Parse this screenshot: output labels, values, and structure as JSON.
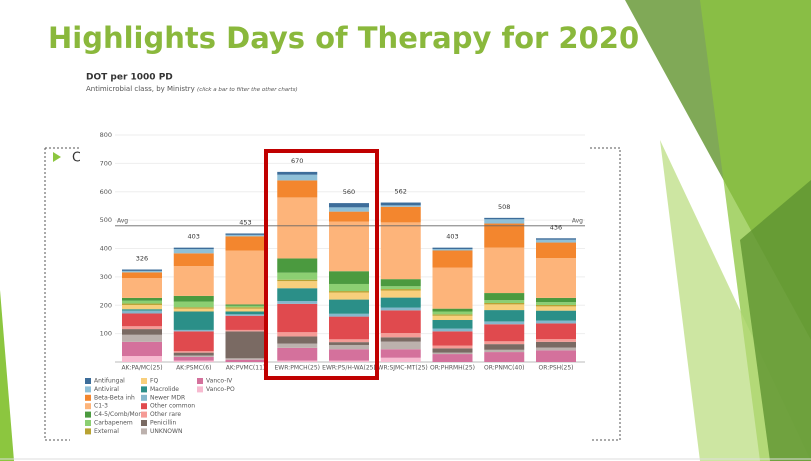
{
  "slide_title": "Highlights Days of Therapy for 2020",
  "bullet_text": "C",
  "chart_data": {
    "type": "stacked_bar",
    "title": "DOT per 1000 PD",
    "subtitle": "Antimicrobial class, by Ministry",
    "subtitle_note": "(click a bar to filter the other charts)",
    "categories": [
      "AK:PA/MC(25)",
      "AK:PSMC(6)",
      "AK:PVMC(11)",
      "EWR:PMCH(25)",
      "EWR:PS/H-WA(25)",
      "EWR:SJMC-MT(25)",
      "OR:PHRMH(25)",
      "OR:PNMC(40)",
      "OR:PSH(25)"
    ],
    "totals": [
      326,
      403,
      453,
      670,
      560,
      562,
      403,
      508,
      436
    ],
    "avg_line": 480,
    "avg_label": "Avg",
    "ylim": [
      0,
      800
    ],
    "yticks": [
      100,
      200,
      300,
      400,
      500,
      600,
      700,
      800
    ],
    "grid": true,
    "series": [
      {
        "name": "Antifungal",
        "color": "#3d6d9a",
        "values": [
          5,
          5,
          5,
          10,
          15,
          10,
          5,
          5,
          5
        ]
      },
      {
        "name": "Antiviral",
        "color": "#8fc0d8",
        "values": [
          5,
          15,
          5,
          20,
          15,
          5,
          5,
          15,
          10
        ]
      },
      {
        "name": "Beta-Beta inh",
        "color": "#f3862e",
        "values": [
          20,
          45,
          50,
          60,
          35,
          55,
          60,
          85,
          55
        ]
      },
      {
        "name": "C1-3",
        "color": "#fdb47a",
        "values": [
          70,
          105,
          190,
          215,
          175,
          200,
          145,
          160,
          140
        ]
      },
      {
        "name": "C4-5/Comb/Mono",
        "color": "#4b9a3f",
        "values": [
          10,
          20,
          5,
          50,
          45,
          25,
          10,
          25,
          15
        ]
      },
      {
        "name": "Carbapenem",
        "color": "#8ccf72",
        "values": [
          10,
          20,
          5,
          25,
          25,
          10,
          10,
          10,
          10
        ]
      },
      {
        "name": "External",
        "color": "#b8a232",
        "values": [
          5,
          5,
          5,
          5,
          5,
          5,
          5,
          5,
          5
        ]
      },
      {
        "name": "FQ",
        "color": "#f8cf7c",
        "values": [
          15,
          10,
          10,
          25,
          25,
          25,
          15,
          20,
          15
        ]
      },
      {
        "name": "Macrolide",
        "color": "#2b8f88",
        "values": [
          5,
          65,
          10,
          45,
          50,
          35,
          30,
          40,
          35
        ]
      },
      {
        "name": "Newer MDR",
        "color": "#84b8cc",
        "values": [
          10,
          5,
          5,
          10,
          10,
          10,
          10,
          10,
          10
        ]
      },
      {
        "name": "Other common",
        "color": "#e04a4e",
        "values": [
          45,
          70,
          50,
          100,
          80,
          80,
          50,
          60,
          55
        ]
      },
      {
        "name": "Other rare",
        "color": "#f59b96",
        "values": [
          10,
          5,
          5,
          15,
          10,
          15,
          10,
          10,
          10
        ]
      },
      {
        "name": "Penicillin",
        "color": "#7a6a63",
        "values": [
          20,
          10,
          95,
          25,
          10,
          15,
          15,
          20,
          20
        ]
      },
      {
        "name": "UNKNOWN",
        "color": "#bcb1ad",
        "values": [
          25,
          5,
          5,
          15,
          15,
          27,
          5,
          8,
          10
        ]
      },
      {
        "name": "Vanco-IV",
        "color": "#d4719c",
        "values": [
          50,
          13,
          8,
          45,
          40,
          30,
          28,
          35,
          41
        ]
      },
      {
        "name": "Vanco-PO",
        "color": "#f7bad0",
        "values": [
          21,
          5,
          0,
          5,
          5,
          15,
          0,
          0,
          0
        ]
      }
    ]
  }
}
